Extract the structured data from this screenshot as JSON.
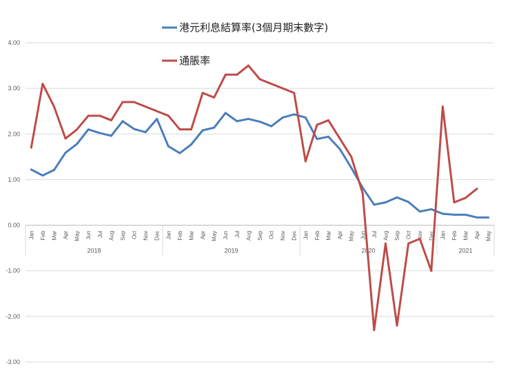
{
  "chart_data": {
    "type": "line",
    "title": "",
    "xlabel": "",
    "ylabel": "",
    "ylim": [
      -3,
      4
    ],
    "yticks": [
      "4.00",
      "3.00",
      "2.00",
      "1.00",
      "0.00",
      "-1.00",
      "-2.00",
      "-3.00"
    ],
    "grid": true,
    "legend_position": "top",
    "x": [
      "Jan",
      "Feb",
      "Mar",
      "Apr",
      "May",
      "Jun",
      "Jul",
      "Aug",
      "Sep",
      "Oct",
      "Nov",
      "Dec",
      "Jan",
      "Feb",
      "Mar",
      "Apr",
      "May",
      "Jun",
      "Jul",
      "Aug",
      "Sep",
      "Oct",
      "Nov",
      "Dec",
      "Jan",
      "Feb",
      "Mar",
      "Apr",
      "May",
      "Jun",
      "Jul",
      "Aug",
      "Sep",
      "Oct",
      "Nov",
      "Dec",
      "Jan",
      "Feb",
      "Mar",
      "Apr",
      "May"
    ],
    "year_groups": [
      {
        "label": "2018",
        "count": 12
      },
      {
        "label": "2019",
        "count": 12
      },
      {
        "label": "2020",
        "count": 12
      },
      {
        "label": "2021",
        "count": 5
      }
    ],
    "series": [
      {
        "name": "港元利息結算率(3個月期末數字)",
        "color": "#4a7ebb",
        "values": [
          1.22,
          1.09,
          1.21,
          1.59,
          1.78,
          2.1,
          2.02,
          1.96,
          2.28,
          2.11,
          2.04,
          2.33,
          1.73,
          1.58,
          1.77,
          2.08,
          2.14,
          2.46,
          2.28,
          2.33,
          2.27,
          2.17,
          2.36,
          2.43,
          2.36,
          1.89,
          1.94,
          1.67,
          1.26,
          0.82,
          0.45,
          0.5,
          0.61,
          0.51,
          0.3,
          0.35,
          0.25,
          0.23,
          0.23,
          0.17,
          0.17
        ]
      },
      {
        "name": "通脹率",
        "color": "#be4b48",
        "values": [
          1.7,
          3.1,
          2.6,
          1.9,
          2.1,
          2.4,
          2.4,
          2.3,
          2.7,
          2.7,
          2.6,
          2.5,
          2.4,
          2.1,
          2.1,
          2.9,
          2.8,
          3.3,
          3.3,
          3.5,
          3.2,
          3.1,
          3.0,
          2.9,
          1.4,
          2.2,
          2.3,
          1.9,
          1.5,
          0.7,
          -2.3,
          -0.4,
          -2.2,
          -0.4,
          -0.3,
          -1.0,
          2.6,
          0.5,
          0.6,
          0.8,
          null
        ]
      }
    ]
  }
}
